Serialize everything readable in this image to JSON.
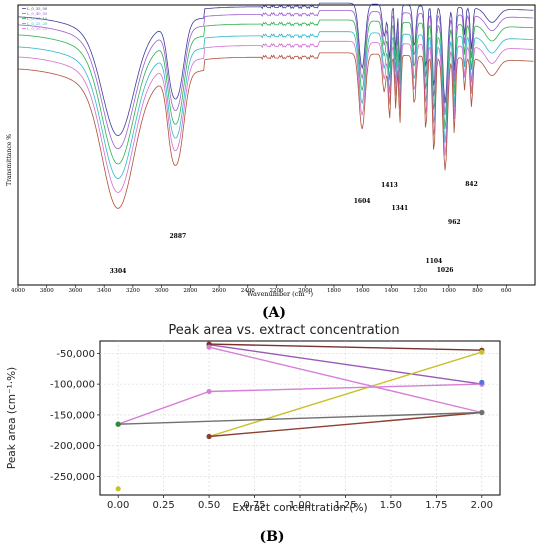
{
  "panel_a_label": "(A)",
  "panel_b_label": "(B)",
  "chart_data": [
    {
      "type": "line",
      "panel": "A",
      "xlabel": "Wavenumber (cm⁻¹)",
      "ylabel": "Transmittance %",
      "xlim": [
        4000,
        400
      ],
      "x_ticks": [
        "4000",
        "3800",
        "3600",
        "3400",
        "3200",
        "3000",
        "2800",
        "2600",
        "2400",
        "2200",
        "2000",
        "1800",
        "1600",
        "1400",
        "1200",
        "1000",
        "800",
        "600"
      ],
      "legend": [
        "L_0_35_00",
        "L_0_40_05",
        "L_0_35_10",
        "L_0_25_20",
        "L_0_30_25"
      ],
      "legend_placement": "top-left",
      "series_colors": [
        "#3d3d99",
        "#9b5fcf",
        "#2fb04f",
        "#2fb7c9",
        "#d070d0",
        "#b0503a"
      ],
      "peak_labels": [
        {
          "text": "3304",
          "x": 3304
        },
        {
          "text": "2887",
          "x": 2887
        },
        {
          "text": "1604",
          "x": 1604
        },
        {
          "text": "1413",
          "x": 1413
        },
        {
          "text": "1341",
          "x": 1341
        },
        {
          "text": "1104",
          "x": 1104
        },
        {
          "text": "1026",
          "x": 1026
        },
        {
          "text": "962",
          "x": 962
        },
        {
          "text": "842",
          "x": 842
        }
      ]
    },
    {
      "type": "line",
      "panel": "B",
      "title": "Peak area vs. extract concentration",
      "xlabel": "Extract concentration (%)",
      "ylabel": "Peak area (cm⁻¹·%)",
      "xlim": [
        -0.1,
        2.1
      ],
      "ylim": [
        -280000,
        -30000
      ],
      "x_ticks": [
        "0.00",
        "0.25",
        "0.50",
        "0.75",
        "1.00",
        "1.25",
        "1.50",
        "1.75",
        "2.00"
      ],
      "x_tick_values": [
        0,
        0.25,
        0.5,
        0.75,
        1.0,
        1.25,
        1.5,
        1.75,
        2.0
      ],
      "y_ticks": [
        "-50,000",
        "-100,000",
        "-150,000",
        "-200,000",
        "-250,000"
      ],
      "y_tick_values": [
        -50000,
        -100000,
        -150000,
        -200000,
        -250000
      ],
      "grid": true,
      "series": [
        {
          "color": "#9b59b6",
          "x": [
            0.5,
            2.0
          ],
          "y": [
            -36000,
            -100000
          ]
        },
        {
          "color": "#7a3030",
          "x": [
            0.5,
            2.0
          ],
          "y": [
            -35000,
            -45000
          ]
        },
        {
          "color": "#c9c12a",
          "x": [
            0.5,
            2.0
          ],
          "y": [
            -185000,
            -48000
          ]
        },
        {
          "color": "#8b4030",
          "x": [
            0.5,
            2.0
          ],
          "y": [
            -185000,
            -146000
          ]
        },
        {
          "color": "#d67fd6",
          "x": [
            0.5,
            2.0
          ],
          "y": [
            -40000,
            -146000
          ]
        },
        {
          "color": "#d67fd6",
          "x": [
            0.0,
            0.5,
            2.0
          ],
          "y": [
            -165000,
            -112000,
            -100000
          ]
        },
        {
          "color": "#707070",
          "x": [
            0.0,
            2.0
          ],
          "y": [
            -165000,
            -146000
          ]
        },
        {
          "color": "#2e8b3a",
          "x": [
            0.0
          ],
          "y": [
            -165000
          ]
        },
        {
          "color": "#c9c12a",
          "x": [
            0.0
          ],
          "y": [
            -270000
          ]
        },
        {
          "color": "#5b6fd6",
          "x": [
            2.0
          ],
          "y": [
            -97000
          ]
        }
      ]
    }
  ]
}
